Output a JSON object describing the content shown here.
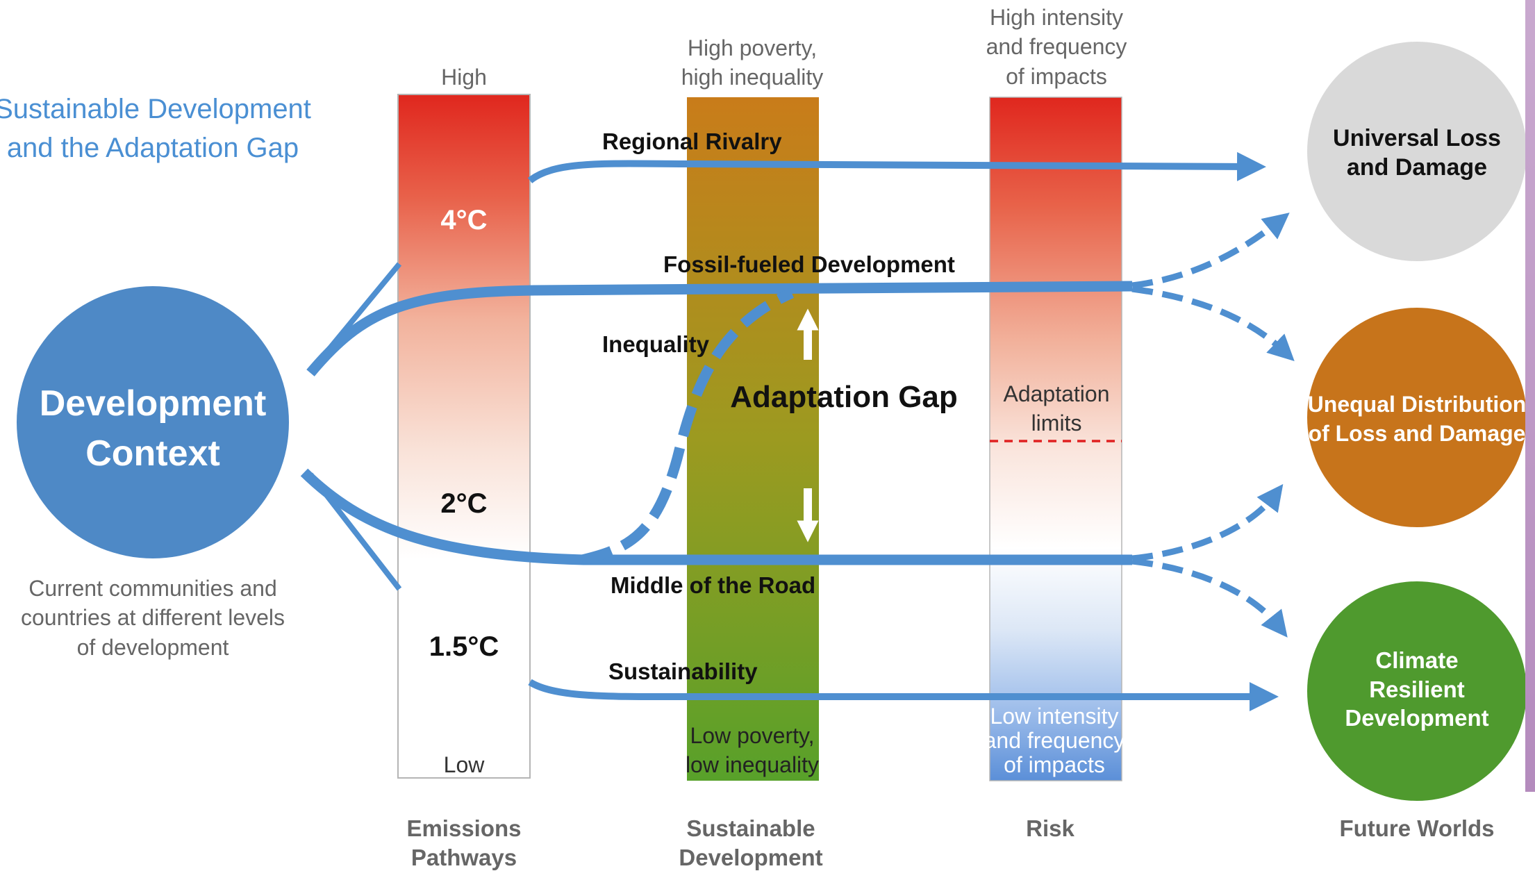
{
  "title": {
    "line1": "Sustainable Development",
    "line2": "and the Adaptation Gap"
  },
  "development_context": {
    "line1": "Development",
    "line2": "Context",
    "caption_line1": "Current communities and",
    "caption_line2": "countries at different levels",
    "caption_line3": "of development"
  },
  "emissions_bar": {
    "top_label": "High",
    "bottom_label": "Low",
    "levels": [
      "4°C",
      "2°C",
      "1.5°C"
    ],
    "axis_line1": "Emissions",
    "axis_line2": "Pathways"
  },
  "development_bar": {
    "top_line1": "High poverty,",
    "top_line2": "high inequality",
    "bottom_line1": "Low poverty,",
    "bottom_line2": "low inequality",
    "axis_line1": "Sustainable",
    "axis_line2": "Development"
  },
  "risk_bar": {
    "top_line1": "High intensity",
    "top_line2": "and frequency",
    "top_line3": "of impacts",
    "limits_line1": "Adaptation",
    "limits_line2": "limits",
    "bottom_line1": "Low intensity",
    "bottom_line2": "and frequency",
    "bottom_line3": "of impacts",
    "axis_label": "Risk"
  },
  "pathways": {
    "regional_rivalry": "Regional Rivalry",
    "fossil_fueled": "Fossil-fueled Development",
    "inequality": "Inequality",
    "middle_of_road": "Middle of the Road",
    "sustainability": "Sustainability"
  },
  "adaptation_gap": "Adaptation Gap",
  "future_worlds": {
    "axis_label": "Future Worlds",
    "universal_line1": "Universal Loss",
    "universal_line2": "and Damage",
    "unequal_line1": "Unequal Distribution",
    "unequal_line2": "of Loss and Damage",
    "resilient_line1": "Climate",
    "resilient_line2": "Resilient",
    "resilient_line3": "Development"
  },
  "colors": {
    "pathway_blue": "#4f8fd0",
    "context_circle": "#4e89c6",
    "universal_circle": "#d9d9d9",
    "unequal_circle": "#c7741b",
    "resilient_circle": "#4f9a2e",
    "limit_line": "#e02020",
    "title_blue": "#4a8fd3"
  }
}
